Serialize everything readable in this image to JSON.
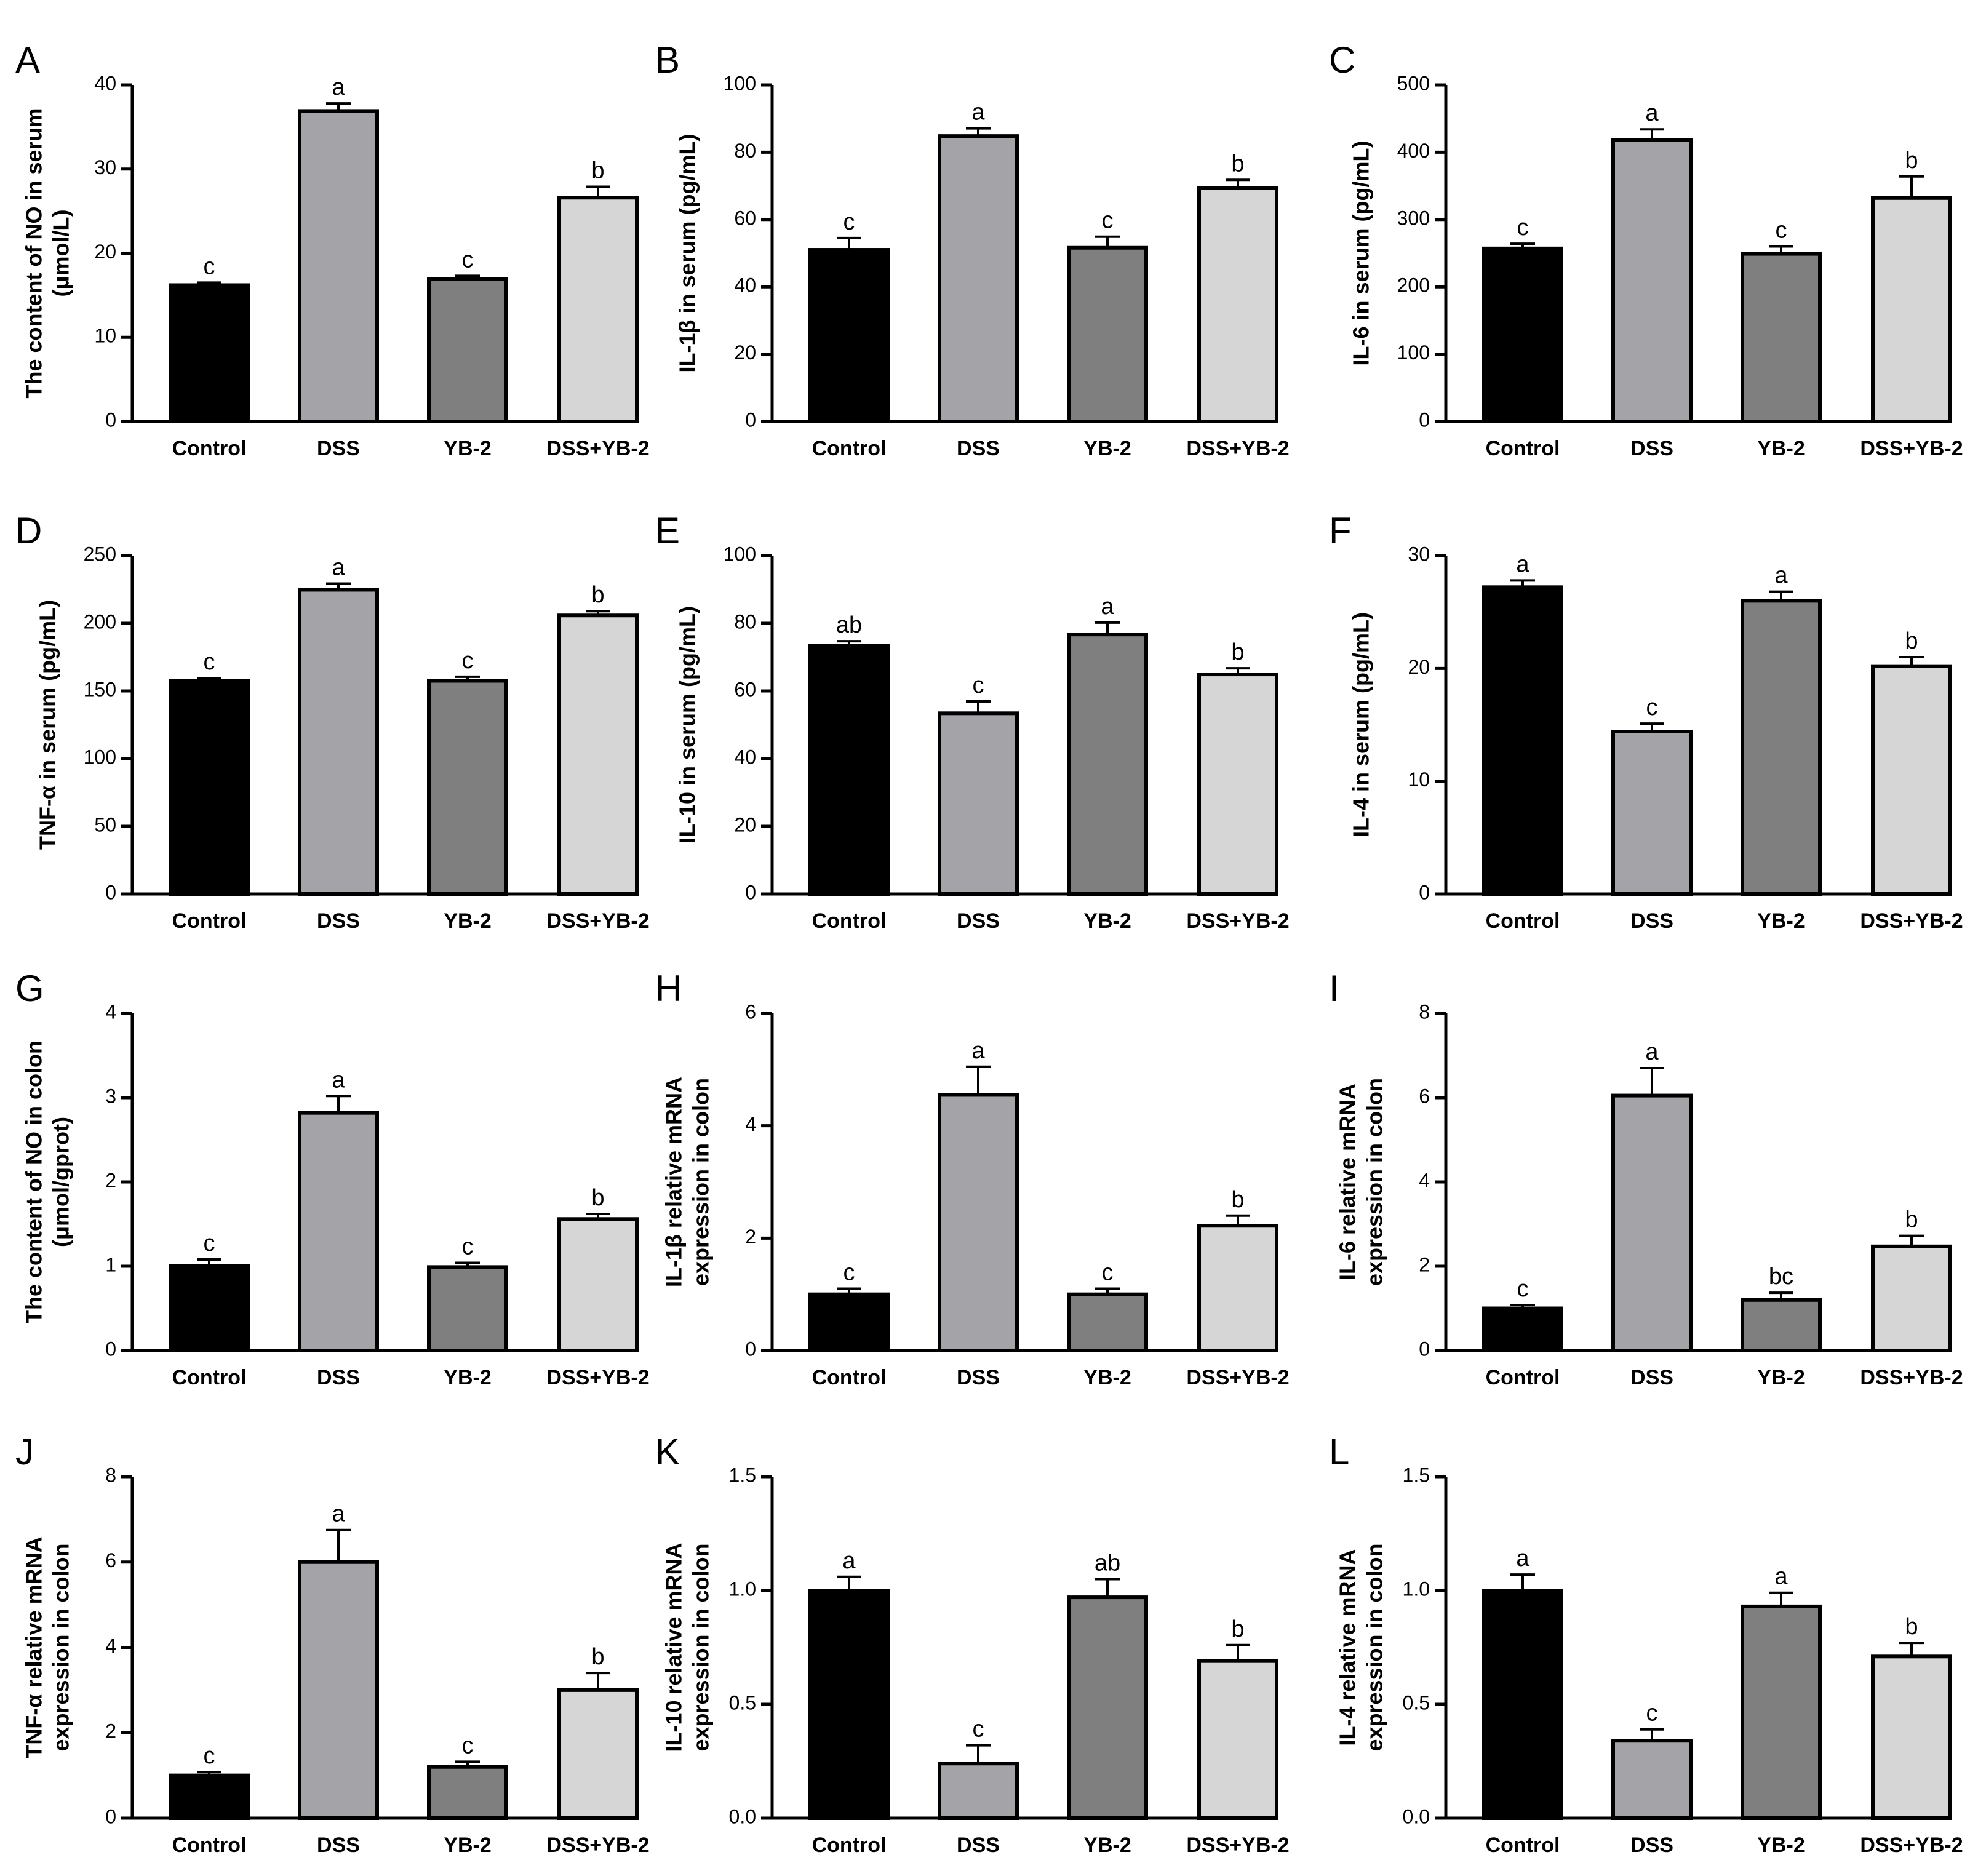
{
  "figure": {
    "categories": [
      "Control",
      "DSS",
      "YB-2",
      "DSS+YB-2"
    ],
    "colors": {
      "Control": "#000000",
      "DSS": "#a3a3a8",
      "YB-2": "#7f7f7f",
      "DSS+YB-2": "#d6d6d6"
    }
  },
  "chart_data": [
    {
      "panel": "A",
      "type": "bar",
      "categories": [
        "Control",
        "DSS",
        "YB-2",
        "DSS+YB-2"
      ],
      "ylabel_lines": [
        "The content of NO in serum",
        "(μmol/L)"
      ],
      "ylim": [
        0,
        40
      ],
      "yticks": [
        0,
        10,
        20,
        30,
        40
      ],
      "ytick_labels": [
        "0",
        "10",
        "20",
        "30",
        "40"
      ],
      "values": [
        16.2,
        36.9,
        16.9,
        26.6
      ],
      "errors": [
        0.3,
        0.9,
        0.4,
        1.3
      ],
      "significance": [
        "c",
        "a",
        "c",
        "b"
      ]
    },
    {
      "panel": "B",
      "type": "bar",
      "categories": [
        "Control",
        "DSS",
        "YB-2",
        "DSS+YB-2"
      ],
      "ylabel_lines": [
        "IL-1β in serum (pg/mL)"
      ],
      "ylim": [
        0,
        100
      ],
      "yticks": [
        0,
        20,
        40,
        60,
        80,
        100
      ],
      "ytick_labels": [
        "0",
        "20",
        "40",
        "60",
        "80",
        "100"
      ],
      "values": [
        51.0,
        84.8,
        51.6,
        69.4
      ],
      "errors": [
        3.5,
        2.3,
        3.3,
        2.4
      ],
      "significance": [
        "c",
        "a",
        "c",
        "b"
      ]
    },
    {
      "panel": "C",
      "type": "bar",
      "categories": [
        "Control",
        "DSS",
        "YB-2",
        "DSS+YB-2"
      ],
      "ylabel_lines": [
        "IL-6 in serum (pg/mL)"
      ],
      "ylim": [
        0,
        500
      ],
      "yticks": [
        0,
        100,
        200,
        300,
        400,
        500
      ],
      "ytick_labels": [
        "0",
        "100",
        "200",
        "300",
        "400",
        "500"
      ],
      "values": [
        257,
        418,
        249,
        332
      ],
      "errors": [
        7,
        16,
        11,
        32
      ],
      "significance": [
        "c",
        "a",
        "c",
        "b"
      ]
    },
    {
      "panel": "D",
      "type": "bar",
      "categories": [
        "Control",
        "DSS",
        "YB-2",
        "DSS+YB-2"
      ],
      "ylabel_lines": [
        "TNF-α in serum (pg/mL)"
      ],
      "ylim": [
        0,
        250
      ],
      "yticks": [
        0,
        50,
        100,
        150,
        200,
        250
      ],
      "ytick_labels": [
        "0",
        "50",
        "100",
        "150",
        "200",
        "250"
      ],
      "values": [
        157.5,
        224.8,
        157.5,
        205.8
      ],
      "errors": [
        2,
        4.5,
        3,
        3.2
      ],
      "significance": [
        "c",
        "a",
        "c",
        "b"
      ]
    },
    {
      "panel": "E",
      "type": "bar",
      "categories": [
        "Control",
        "DSS",
        "YB-2",
        "DSS+YB-2"
      ],
      "ylabel_lines": [
        "IL-10 in serum (pg/mL)"
      ],
      "ylim": [
        0,
        100
      ],
      "yticks": [
        0,
        20,
        40,
        60,
        80,
        100
      ],
      "ytick_labels": [
        "0",
        "20",
        "40",
        "60",
        "80",
        "100"
      ],
      "values": [
        73.4,
        53.4,
        76.7,
        64.9
      ],
      "errors": [
        1.3,
        3.5,
        3.5,
        1.8
      ],
      "significance": [
        "ab",
        "c",
        "a",
        "b"
      ]
    },
    {
      "panel": "F",
      "type": "bar",
      "categories": [
        "Control",
        "DSS",
        "YB-2",
        "DSS+YB-2"
      ],
      "ylabel_lines": [
        "IL-4 in serum (pg/mL)"
      ],
      "ylim": [
        0,
        30
      ],
      "yticks": [
        0,
        10,
        20,
        30
      ],
      "ytick_labels": [
        "0",
        "10",
        "20",
        "30"
      ],
      "values": [
        27.2,
        14.4,
        26.0,
        20.2
      ],
      "errors": [
        0.6,
        0.7,
        0.8,
        0.8
      ],
      "significance": [
        "a",
        "c",
        "a",
        "b"
      ]
    },
    {
      "panel": "G",
      "type": "bar",
      "categories": [
        "Control",
        "DSS",
        "YB-2",
        "DSS+YB-2"
      ],
      "ylabel_lines": [
        "The content of NO in colon",
        "(μmol/gprot)"
      ],
      "ylim": [
        0,
        4
      ],
      "yticks": [
        0,
        1,
        2,
        3,
        4
      ],
      "ytick_labels": [
        "0",
        "1",
        "2",
        "3",
        "4"
      ],
      "values": [
        1.0,
        2.82,
        0.99,
        1.56
      ],
      "errors": [
        0.08,
        0.2,
        0.05,
        0.06
      ],
      "significance": [
        "c",
        "a",
        "c",
        "b"
      ]
    },
    {
      "panel": "H",
      "type": "bar",
      "categories": [
        "Control",
        "DSS",
        "YB-2",
        "DSS+YB-2"
      ],
      "ylabel_lines": [
        "IL-1β relative mRNA",
        "expression  in  colon"
      ],
      "ylim": [
        0,
        6
      ],
      "yticks": [
        0,
        2,
        4,
        6
      ],
      "ytick_labels": [
        "0",
        "2",
        "4",
        "6"
      ],
      "values": [
        1.0,
        4.55,
        1.0,
        2.22
      ],
      "errors": [
        0.1,
        0.5,
        0.1,
        0.18
      ],
      "significance": [
        "c",
        "a",
        "c",
        "b"
      ]
    },
    {
      "panel": "I",
      "type": "bar",
      "categories": [
        "Control",
        "DSS",
        "YB-2",
        "DSS+YB-2"
      ],
      "ylabel_lines": [
        "IL-6 relative mRNA",
        "expression  in  colon"
      ],
      "ylim": [
        0,
        8
      ],
      "yticks": [
        0,
        2,
        4,
        6,
        8
      ],
      "ytick_labels": [
        "0",
        "2",
        "4",
        "6",
        "8"
      ],
      "values": [
        1.0,
        6.05,
        1.2,
        2.47
      ],
      "errors": [
        0.08,
        0.65,
        0.17,
        0.25
      ],
      "significance": [
        "c",
        "a",
        "bc",
        "b"
      ]
    },
    {
      "panel": "J",
      "type": "bar",
      "categories": [
        "Control",
        "DSS",
        "YB-2",
        "DSS+YB-2"
      ],
      "ylabel_lines": [
        "TNF-α relative mRNA",
        "expression  in  colon"
      ],
      "ylim": [
        0,
        8
      ],
      "yticks": [
        0,
        2,
        4,
        6,
        8
      ],
      "ytick_labels": [
        "0",
        "2",
        "4",
        "6",
        "8"
      ],
      "values": [
        1.0,
        6.0,
        1.2,
        3.0
      ],
      "errors": [
        0.08,
        0.75,
        0.12,
        0.4
      ],
      "significance": [
        "c",
        "a",
        "c",
        "b"
      ]
    },
    {
      "panel": "K",
      "type": "bar",
      "categories": [
        "Control",
        "DSS",
        "YB-2",
        "DSS+YB-2"
      ],
      "ylabel_lines": [
        "IL-10 relative mRNA",
        "expression  in  colon"
      ],
      "ylim": [
        0,
        1.5
      ],
      "yticks": [
        0,
        0.5,
        1.0,
        1.5
      ],
      "ytick_labels": [
        "0.0",
        "0.5",
        "1.0",
        "1.5"
      ],
      "values": [
        1.0,
        0.24,
        0.97,
        0.69
      ],
      "errors": [
        0.06,
        0.08,
        0.08,
        0.07
      ],
      "significance": [
        "a",
        "c",
        "ab",
        "b"
      ]
    },
    {
      "panel": "L",
      "type": "bar",
      "categories": [
        "Control",
        "DSS",
        "YB-2",
        "DSS+YB-2"
      ],
      "ylabel_lines": [
        "IL-4 relative mRNA",
        "expression  in  colon"
      ],
      "ylim": [
        0,
        1.5
      ],
      "yticks": [
        0,
        0.5,
        1.0,
        1.5
      ],
      "ytick_labels": [
        "0.0",
        "0.5",
        "1.0",
        "1.5"
      ],
      "values": [
        1.0,
        0.34,
        0.93,
        0.71
      ],
      "errors": [
        0.07,
        0.05,
        0.06,
        0.06
      ],
      "significance": [
        "a",
        "c",
        "a",
        "b"
      ]
    }
  ]
}
